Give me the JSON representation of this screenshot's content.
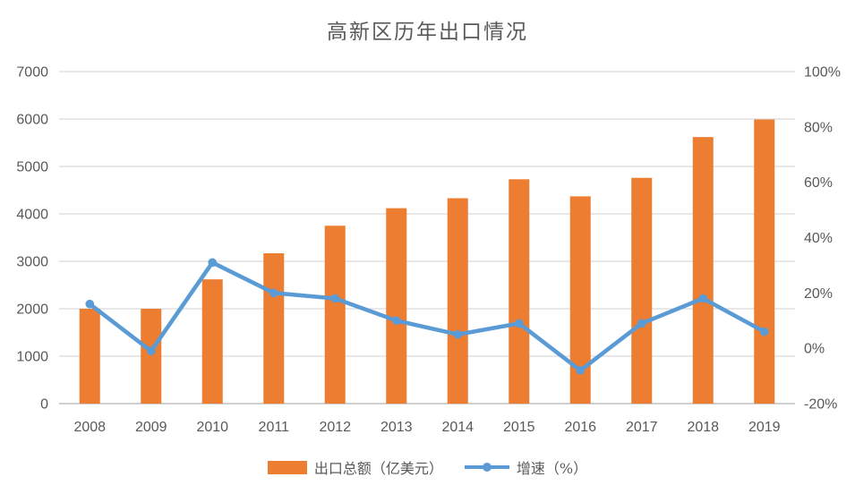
{
  "title": "高新区历年出口情况",
  "colors": {
    "bar": "#ED7D31",
    "line": "#5B9BD5",
    "grid": "#D9D9D9",
    "axis_line": "#BFBFBF",
    "text": "#595959",
    "background": "#FFFFFF"
  },
  "legend": {
    "bar_label": "出口总额（亿美元）",
    "line_label": "增速（%）"
  },
  "chart_data": {
    "type": "bar",
    "subtype": "combo-bar-line",
    "title": "高新区历年出口情况",
    "categories": [
      "2008",
      "2009",
      "2010",
      "2011",
      "2012",
      "2013",
      "2014",
      "2015",
      "2016",
      "2017",
      "2018",
      "2019"
    ],
    "series": [
      {
        "name": "出口总额（亿美元）",
        "type": "bar",
        "axis": "left",
        "values": [
          2000,
          2000,
          2620,
          3170,
          3750,
          4120,
          4330,
          4730,
          4370,
          4760,
          5620,
          5990
        ]
      },
      {
        "name": "增速（%）",
        "type": "line",
        "axis": "right",
        "values": [
          16,
          -1,
          31,
          20,
          18,
          10,
          5,
          9,
          -8,
          9,
          18,
          6
        ]
      }
    ],
    "left_axis": {
      "min": 0,
      "max": 7000,
      "step": 1000,
      "tick_labels": [
        "0",
        "1000",
        "2000",
        "3000",
        "4000",
        "5000",
        "6000",
        "7000"
      ]
    },
    "right_axis": {
      "min": -20,
      "max": 100,
      "step": 20,
      "tick_labels": [
        "-20%",
        "0%",
        "20%",
        "40%",
        "60%",
        "80%",
        "100%"
      ]
    },
    "grid": true,
    "legend_position": "bottom",
    "xlabel": "",
    "ylabel": ""
  }
}
